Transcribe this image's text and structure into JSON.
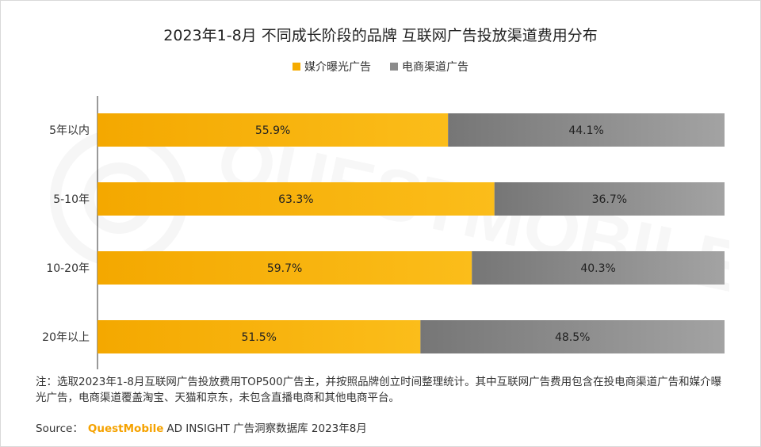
{
  "title": "2023年1-8月 不同成长阶段的品牌 互联网广告投放渠道费用分布",
  "legend": [
    {
      "label": "媒介曝光广告",
      "color": "#f5ab00"
    },
    {
      "label": "电商渠道广告",
      "color": "#8c8c8c"
    }
  ],
  "note": "注：选取2023年1-8月互联网广告投放费用TOP500广告主，并按照品牌创立时间整理统计。其中互联网广告费用包含在投电商渠道广告和媒介曝光广告，电商渠道覆盖淘宝、天猫和京东，未包含直播电商和其他电商平台。",
  "source": {
    "label": "Source：",
    "brand": "QuestMobile",
    "rest": "AD INSIGHT 广告洞察数据库 2023年8月"
  },
  "watermark": "QUESTMOBILE",
  "chart_data": {
    "type": "bar",
    "orientation": "horizontal",
    "stacked": true,
    "percent": true,
    "categories": [
      "5年以内",
      "5-10年",
      "10-20年",
      "20年以上"
    ],
    "series": [
      {
        "name": "媒介曝光广告",
        "values": [
          55.9,
          63.3,
          59.7,
          51.5
        ],
        "labels": [
          "55.9%",
          "63.3%",
          "59.7%",
          "51.5%"
        ],
        "color": "#f5ab00"
      },
      {
        "name": "电商渠道广告",
        "values": [
          44.1,
          36.7,
          40.3,
          48.5
        ],
        "labels": [
          "44.1%",
          "36.7%",
          "40.3%",
          "48.5%"
        ],
        "color": "#8c8c8c"
      }
    ],
    "xlim": [
      0,
      100
    ],
    "grid": false,
    "legend_position": "top"
  }
}
